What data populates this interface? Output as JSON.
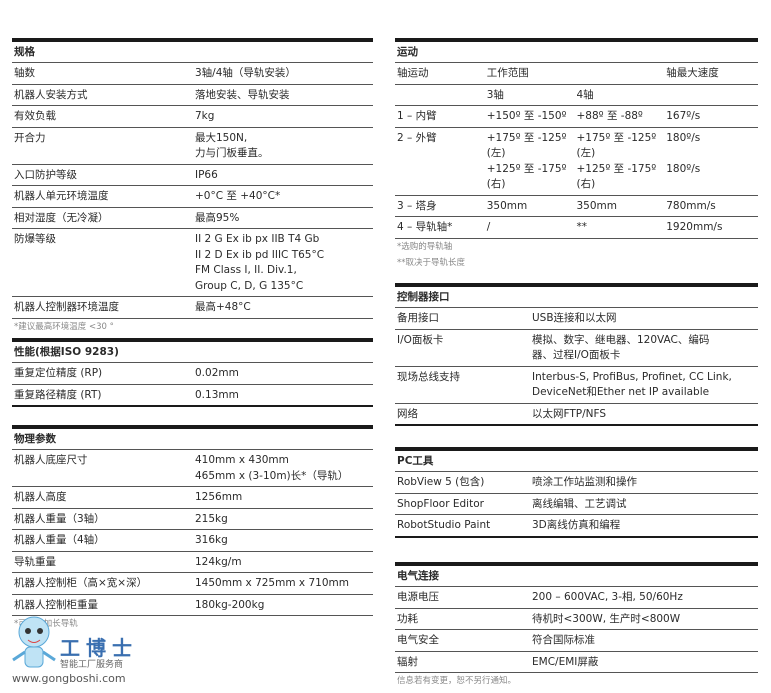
{
  "left": [
    {
      "title": "规格",
      "rows": [
        [
          "轴数",
          "3轴/4轴（导轨安装）"
        ],
        [
          "机器人安装方式",
          "落地安装、导轨安装"
        ],
        [
          "有效负载",
          "7kg"
        ],
        [
          "开合力",
          "最大150N,\n力与门板垂直。"
        ],
        [
          "入口防护等级",
          "IP66"
        ],
        [
          "机器人单元环境温度",
          "+0°C 至 +40°C*"
        ],
        [
          "相对湿度（无冷凝）",
          "最高95%"
        ],
        [
          "防爆等级",
          "II 2 G Ex ib px IIB T4 Gb\nII 2 D Ex ib pd IIIC T65°C\nFM Class I, II. Div.1,\nGroup C, D, G 135°C"
        ],
        [
          "机器人控制器环境温度",
          "最高+48°C"
        ]
      ],
      "notes": [
        "*建议最高环境温度 <30 °"
      ]
    },
    {
      "title": "性能(根据ISO 9283)",
      "rows": [
        [
          "重复定位精度 (RP)",
          "0.02mm"
        ],
        [
          "重复路径精度 (RT)",
          "0.13mm"
        ]
      ],
      "notes": []
    },
    {
      "title": "物理参数",
      "rows": [
        [
          "机器人底座尺寸",
          "410mm x 430mm\n465mm x (3-10m)长*（导轨）"
        ],
        [
          "机器人高度",
          "1256mm"
        ],
        [
          "机器人重量（3轴）",
          "215kg"
        ],
        [
          "机器人重量（4轴）",
          "316kg"
        ],
        [
          "导轨重量",
          "124kg/m"
        ],
        [
          "机器人控制柜（高×宽×深）",
          "1450mm x 725mm x 710mm"
        ],
        [
          "机器人控制柜重量",
          "180kg-200kg"
        ]
      ],
      "notes": [
        "*可提供加长导轨"
      ]
    }
  ],
  "motion": {
    "title": "运动",
    "rows": [
      [
        "轴运动",
        "工作范围",
        "",
        "轴最大速度"
      ],
      [
        "",
        "3轴",
        "4轴",
        ""
      ],
      [
        "1 – 内臂",
        "+150º 至 -150º",
        "+88º 至 -88º",
        "167º/s"
      ],
      [
        "2 – 外臂",
        "+175º 至 -125º\n(左)\n+125º 至 -175º\n(右)",
        "+175º 至 -125º\n(左)\n+125º 至 -175º\n(右)",
        "180º/s\n\n180º/s"
      ],
      [
        "3 – 塔身",
        "350mm",
        "350mm",
        "780mm/s"
      ],
      [
        "4 – 导轨轴*",
        "/",
        "**",
        "1920mm/s"
      ]
    ],
    "notes": [
      "*选购的导轨轴",
      "**取决于导轨长度"
    ]
  },
  "right": [
    {
      "title": "控制器接口",
      "rows": [
        [
          "备用接口",
          "USB连接和以太网"
        ],
        [
          "I/O面板卡",
          "模拟、数字、继电器、120VAC、编码\n器、过程I/O面板卡"
        ],
        [
          "现场总线支持",
          "Interbus-S, ProfiBus, Profinet, CC Link,\nDeviceNet和Ether net IP available"
        ],
        [
          "网络",
          "以太网FTP/NFS"
        ]
      ],
      "notes": []
    },
    {
      "title": "PC工具",
      "rows": [
        [
          "RobView 5 (包含)",
          "喷涂工作站监测和操作"
        ],
        [
          "ShopFloor Editor",
          "离线编辑、工艺调试"
        ],
        [
          "RobotStudio Paint",
          "3D离线仿真和编程"
        ]
      ],
      "notes": []
    },
    {
      "title": "电气连接",
      "rows": [
        [
          "电源电压",
          "200 – 600VAC, 3-相, 50/60Hz"
        ],
        [
          "功耗",
          "待机时<300W, 生产时<800W"
        ],
        [
          "电气安全",
          "符合国际标准"
        ],
        [
          "辐射",
          "EMC/EMI屏蔽"
        ]
      ],
      "notes": [
        "信息若有变更，恕不另行通知。"
      ]
    }
  ],
  "watermark": {
    "name": "工博士",
    "tagline": "智能工厂服务商",
    "url": "www.gongboshi.com"
  }
}
